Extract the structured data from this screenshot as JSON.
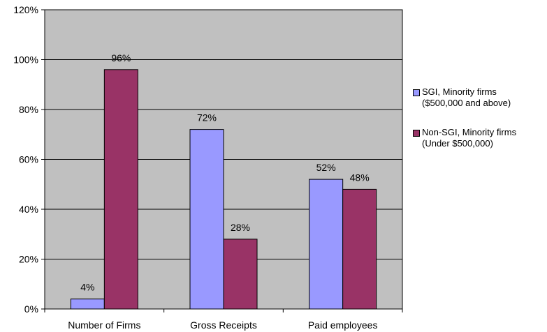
{
  "chart_data": {
    "type": "bar",
    "categories": [
      "Number of Firms",
      "Gross Receipts",
      "Paid employees"
    ],
    "series": [
      {
        "name": "SGI, Minority firms\n($500,000 and above)",
        "color": "#9999ff",
        "values": [
          4,
          72,
          52
        ],
        "labels": [
          "4%",
          "72%",
          "52%"
        ]
      },
      {
        "name": "Non-SGI, Minority firms\n(Under $500,000)",
        "color": "#993366",
        "values": [
          96,
          28,
          48
        ],
        "labels": [
          "96%",
          "28%",
          "48%"
        ]
      }
    ],
    "ylim": [
      0,
      120
    ],
    "yticks": [
      0,
      20,
      40,
      60,
      80,
      100,
      120
    ],
    "ytick_labels": [
      "0%",
      "20%",
      "40%",
      "60%",
      "80%",
      "100%",
      "120%"
    ],
    "grid": true,
    "plot_background": "#c0c0c0",
    "legend_position": "right",
    "title": "",
    "xlabel": "",
    "ylabel": ""
  }
}
